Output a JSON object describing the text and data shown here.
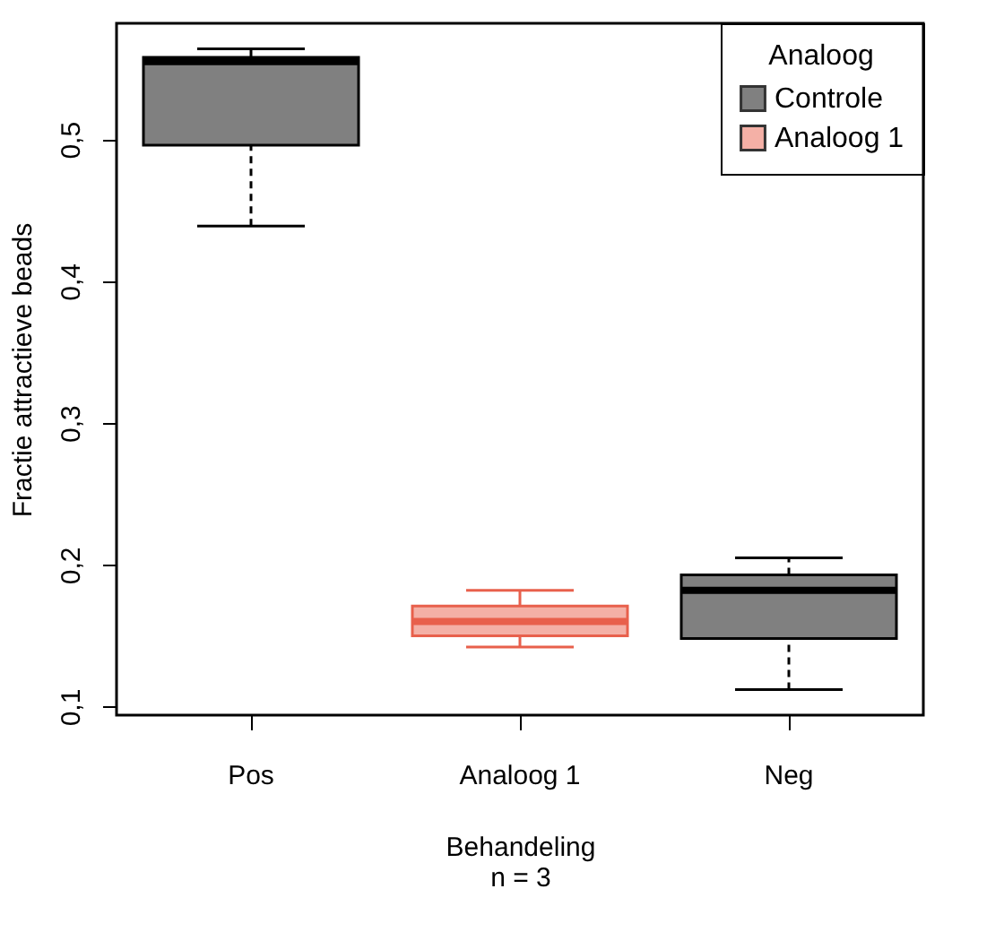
{
  "chart_data": {
    "type": "box",
    "xlabel": "Behandeling\nn = 3",
    "ylabel": "Fractie attractieve beads",
    "legend_title": "Analoog",
    "categories": [
      "Pos",
      "Analoog 1",
      "Neg"
    ],
    "series": [
      {
        "name": "Controle",
        "color": "#000000",
        "line_style": "dashed",
        "boxes": [
          {
            "low": 0.439,
            "q1": 0.496,
            "median": 0.555,
            "q3": 0.558,
            "high": 0.564
          },
          null,
          {
            "low": 0.112,
            "q1": 0.148,
            "median": 0.182,
            "q3": 0.193,
            "high": 0.205
          }
        ]
      },
      {
        "name": "Analoog 1",
        "color": "#e8604c",
        "line_style": "solid",
        "boxes": [
          null,
          {
            "low": 0.142,
            "q1": 0.15,
            "median": 0.16,
            "q3": 0.171,
            "high": 0.182
          },
          null
        ]
      }
    ],
    "ylim": [
      0.094,
      0.582
    ],
    "yticks": [
      {
        "value": 0.1,
        "label": "0,1"
      },
      {
        "value": 0.2,
        "label": "0,2"
      },
      {
        "value": 0.3,
        "label": "0,3"
      },
      {
        "value": 0.4,
        "label": "0,4"
      },
      {
        "value": 0.5,
        "label": "0,5"
      }
    ],
    "legend": "top right",
    "grid": false
  }
}
